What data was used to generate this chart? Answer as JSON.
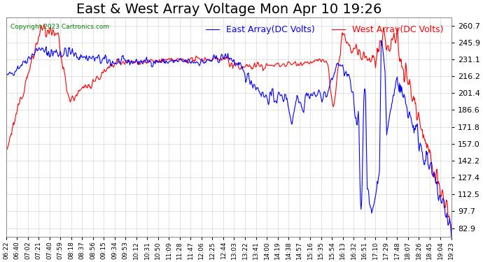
{
  "title": "East & West Array Voltage Mon Apr 10 19:26",
  "copyright": "Copyright 2023 Cartronics.com",
  "legend_east": "East Array(DC Volts)",
  "legend_west": "West Array(DC Volts)",
  "east_color": "#0000ff",
  "west_color": "#ff0000",
  "bg_color": "#ffffff",
  "grid_color": "#cccccc",
  "yticks": [
    82.9,
    97.7,
    112.5,
    127.4,
    142.2,
    157.0,
    171.8,
    186.6,
    201.4,
    216.2,
    231.1,
    245.9,
    260.7
  ],
  "ylim": [
    75,
    268
  ],
  "xtick_labels": [
    "06:22",
    "06:40",
    "07:02",
    "07:21",
    "07:40",
    "07:59",
    "08:18",
    "08:37",
    "08:56",
    "09:15",
    "09:34",
    "09:53",
    "10:12",
    "10:31",
    "10:50",
    "11:09",
    "11:28",
    "11:47",
    "12:06",
    "12:25",
    "12:44",
    "13:03",
    "13:22",
    "13:41",
    "14:00",
    "14:19",
    "14:38",
    "14:57",
    "15:16",
    "15:35",
    "15:54",
    "16:13",
    "16:32",
    "16:51",
    "17:10",
    "17:29",
    "17:48",
    "18:07",
    "18:26",
    "18:45",
    "19:04",
    "19:23"
  ],
  "title_fontsize": 14,
  "ytick_fontsize": 8,
  "xtick_fontsize": 6.5,
  "legend_fontsize": 9,
  "line_width": 0.8
}
